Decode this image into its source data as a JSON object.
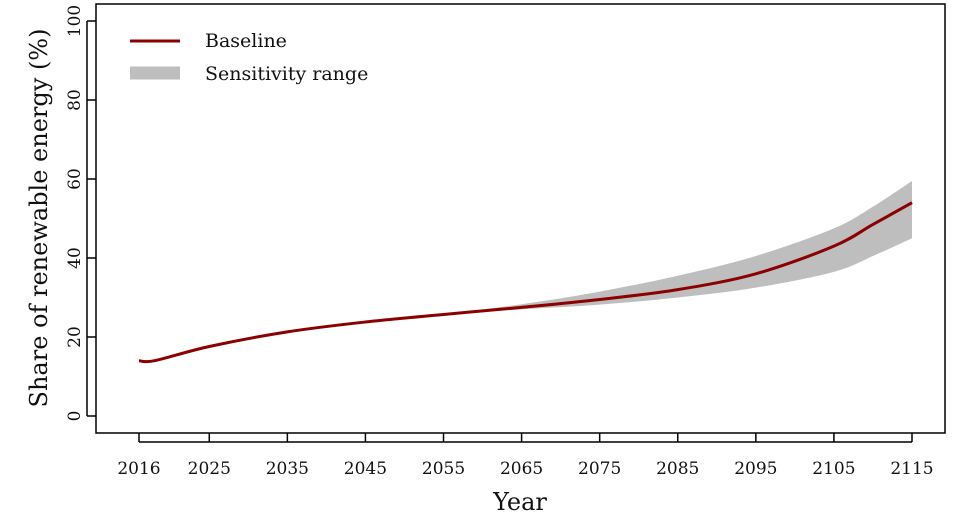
{
  "chart_data": {
    "type": "area",
    "xlabel": "Year",
    "ylabel": "Share of renewable energy (%)",
    "xlim": [
      2016,
      2115
    ],
    "ylim": [
      0,
      100
    ],
    "x_ticks": [
      2016,
      2025,
      2035,
      2045,
      2055,
      2065,
      2075,
      2085,
      2095,
      2105,
      2115
    ],
    "y_ticks": [
      0,
      20,
      40,
      60,
      80,
      100
    ],
    "grid": false,
    "legend_position": "top-left",
    "legend": {
      "baseline_label": "Baseline",
      "band_label": "Sensitivity range"
    },
    "colors": {
      "baseline": "#8b0000",
      "band": "#bebebe",
      "axis": "#000000"
    },
    "x": [
      2016,
      2018,
      2025,
      2035,
      2045,
      2055,
      2065,
      2075,
      2085,
      2095,
      2105,
      2110,
      2115
    ],
    "series": [
      {
        "name": "Baseline",
        "role": "line",
        "values": [
          14.0,
          14.0,
          17.6,
          21.3,
          23.8,
          25.7,
          27.5,
          29.5,
          32.0,
          36.0,
          43.0,
          48.5,
          54.0
        ]
      },
      {
        "name": "Sensitivity range",
        "role": "band-upper",
        "values": [
          14.0,
          14.0,
          17.6,
          21.3,
          23.8,
          25.8,
          28.3,
          31.5,
          35.5,
          40.5,
          47.5,
          53.0,
          59.5
        ]
      },
      {
        "name": "Sensitivity range",
        "role": "band-lower",
        "values": [
          14.0,
          14.0,
          17.6,
          21.3,
          23.8,
          25.6,
          27.0,
          28.2,
          30.0,
          32.5,
          36.5,
          40.5,
          45.0
        ]
      }
    ]
  }
}
